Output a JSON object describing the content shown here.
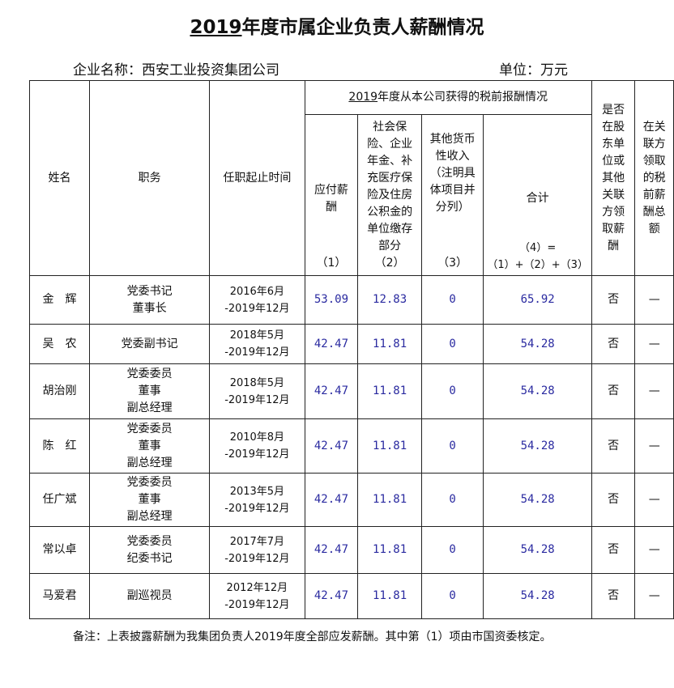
{
  "title": {
    "year": "2019",
    "rest": "年度市属企业负责人薪酬情况"
  },
  "company": "企业名称：西安工业投资集团公司",
  "unit": "单位：万元",
  "headers": {
    "name": "姓名",
    "position": "职务",
    "term": "任职起止时间",
    "group_year": "2019",
    "group_rest": "年度从本公司获得的税前报酬情况",
    "c1": "应付薪酬",
    "c1n": "（1）",
    "c2": "社会保险、企业年金、补充医疗保险及住房公积金的单位缴存部分",
    "c2n": "（2）",
    "c3": "其他货币性收入（注明具体项目并分列）",
    "c3n": "（3）",
    "c4": "合计",
    "c4n": "（4）=（1）+（2）+（3）",
    "c5": "是否在股东单位或其他关联方领取薪酬",
    "c6": "在关联方领取的税前薪酬总额"
  },
  "rows": [
    {
      "name": "金　辉",
      "position": [
        "党委书记",
        "董事长"
      ],
      "term": [
        "2016年6月",
        "-2019年12月"
      ],
      "v1": "53.09",
      "v2": "12.83",
      "v3": "0",
      "v4": "65.92",
      "v5": "否",
      "v6": "—"
    },
    {
      "name": "吴　农",
      "position": [
        "党委副书记"
      ],
      "term": [
        "2018年5月",
        "-2019年12月"
      ],
      "v1": "42.47",
      "v2": "11.81",
      "v3": "0",
      "v4": "54.28",
      "v5": "否",
      "v6": "—"
    },
    {
      "name": "胡治刚",
      "position": [
        "党委委员",
        "董事",
        "副总经理"
      ],
      "term": [
        "2018年5月",
        "-2019年12月"
      ],
      "v1": "42.47",
      "v2": "11.81",
      "v3": "0",
      "v4": "54.28",
      "v5": "否",
      "v6": "—"
    },
    {
      "name": "陈　红",
      "position": [
        "党委委员",
        "董事",
        "副总经理"
      ],
      "term": [
        "2010年8月",
        "-2019年12月"
      ],
      "v1": "42.47",
      "v2": "11.81",
      "v3": "0",
      "v4": "54.28",
      "v5": "否",
      "v6": "—"
    },
    {
      "name": "任广斌",
      "position": [
        "党委委员",
        "董事",
        "副总经理"
      ],
      "term": [
        "2013年5月",
        "-2019年12月"
      ],
      "v1": "42.47",
      "v2": "11.81",
      "v3": "0",
      "v4": "54.28",
      "v5": "否",
      "v6": "—"
    },
    {
      "name": "常以卓",
      "position": [
        "党委委员",
        "纪委书记"
      ],
      "term": [
        "2017年7月",
        "-2019年12月"
      ],
      "v1": "42.47",
      "v2": "11.81",
      "v3": "0",
      "v4": "54.28",
      "v5": "否",
      "v6": "—"
    },
    {
      "name": "马爱君",
      "position": [
        "副巡视员"
      ],
      "term": [
        "2012年12月",
        "-2019年12月"
      ],
      "v1": "42.47",
      "v2": "11.81",
      "v3": "0",
      "v4": "54.28",
      "v5": "否",
      "v6": "—"
    }
  ],
  "note": "备注：上表披露薪酬为我集团负责人2019年度全部应发薪酬。其中第（1）项由市国资委核定。"
}
